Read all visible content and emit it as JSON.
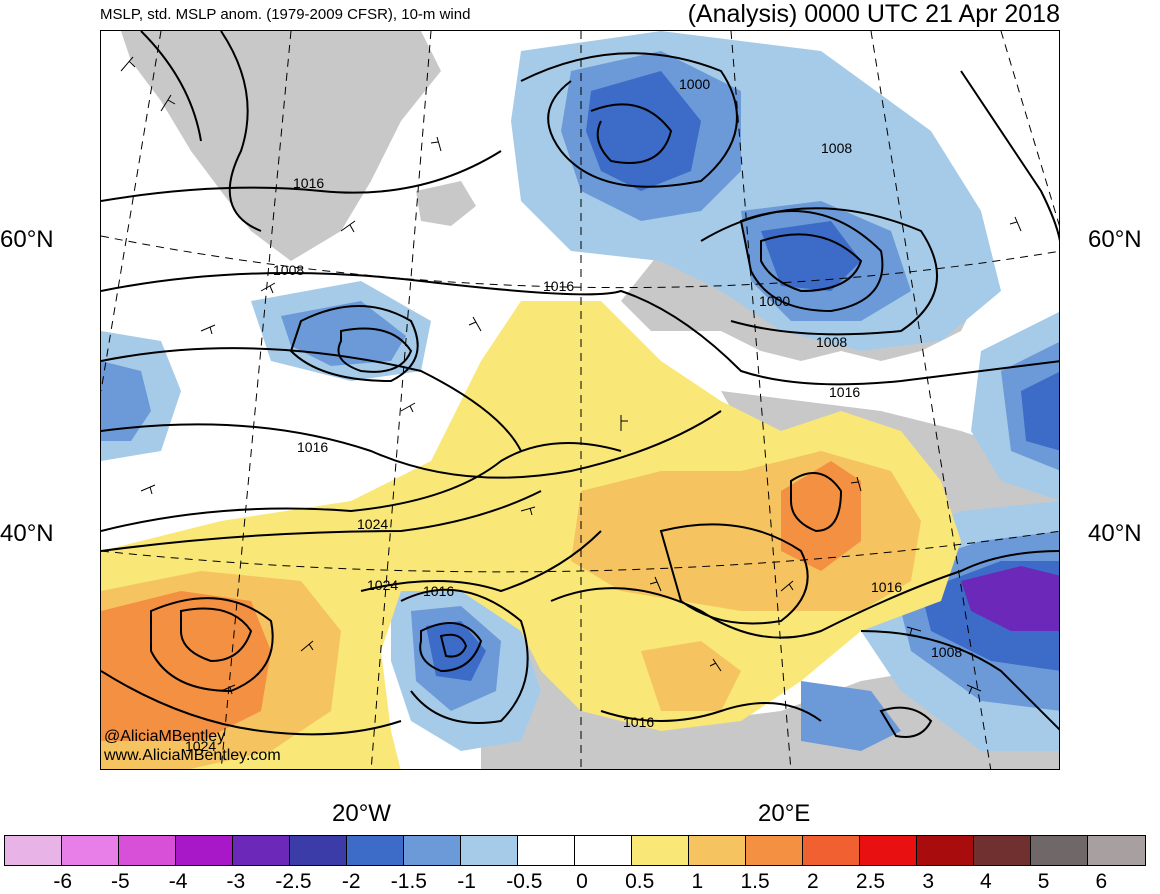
{
  "header": {
    "left_title": "MSLP, std. MSLP anom. (1979-2009 CFSR), 10-m wind",
    "right_title": "(Analysis) 0000 UTC 21 Apr 2018"
  },
  "axes": {
    "lat_labels": [
      "60°N",
      "40°N"
    ],
    "lon_labels": [
      "20°W",
      "20°E"
    ]
  },
  "credit": {
    "line1": "@AliciaMBentley",
    "line2": "www.AliciaMBentley.com"
  },
  "isobar_labels": [
    "1000",
    "1008",
    "1016",
    "1008",
    "1016",
    "1000",
    "1008",
    "1016",
    "1016",
    "1024",
    "1024",
    "1016",
    "1016",
    "1008",
    "1016",
    "1024"
  ],
  "colorbar": {
    "colors": [
      "#e8b4e8",
      "#e87ee8",
      "#d84fd8",
      "#a818c8",
      "#6c28b8",
      "#3c3ca8",
      "#3c6cc8",
      "#6c9ad8",
      "#a6cbe8",
      "#ffffff",
      "#ffffff",
      "#f9e778",
      "#f5c35f",
      "#f39042",
      "#f06030",
      "#e81010",
      "#a80c0c",
      "#703030",
      "#706868",
      "#a8a0a0"
    ],
    "tick_labels": [
      "-6",
      "-5",
      "-4",
      "-3",
      "-2.5",
      "-2",
      "-1.5",
      "-1",
      "-0.5",
      "0",
      "0.5",
      "1",
      "1.5",
      "2",
      "2.5",
      "3",
      "4",
      "5",
      "6"
    ]
  },
  "map_colors": {
    "land_gray": "#c8c8c8",
    "anom_neg_05": "#a6cbe8",
    "anom_neg_1": "#6c9ad8",
    "anom_neg_15": "#3c6cc8",
    "anom_neg_2": "#3c3ca8",
    "anom_neg_25": "#6c28b8",
    "anom_pos_05": "#f9e778",
    "anom_pos_1": "#f5c35f",
    "anom_pos_15": "#f39042"
  }
}
